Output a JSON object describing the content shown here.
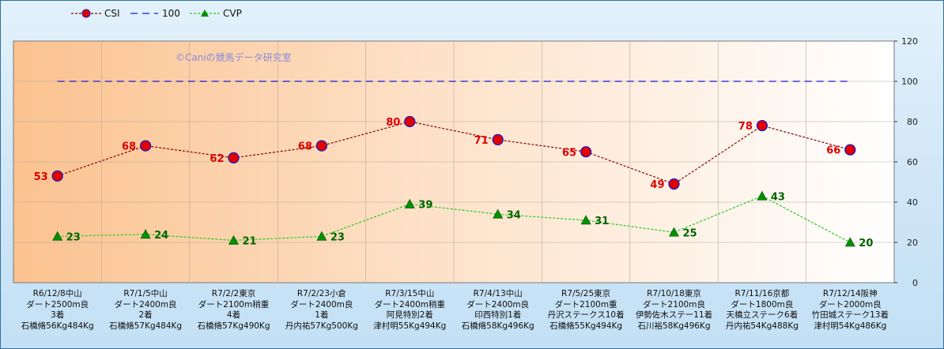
{
  "chart_data": {
    "type": "line",
    "watermark": "©Caniの競馬データ研究室",
    "legend": [
      "CSI",
      "100",
      "CVP"
    ],
    "legend_position": "top-left",
    "ylim": [
      0,
      120
    ],
    "yticks": [
      "0",
      "20",
      "40",
      "60",
      "80",
      "100",
      "120"
    ],
    "y_axis_side": "right",
    "grid": true,
    "categories": [
      [
        "R6/12/8中山",
        "ダート2500m良",
        "3着",
        "石橋脩56Kg484Kg"
      ],
      [
        "R7/1/5中山",
        "ダート2400m良",
        "2着",
        "石橋脩57Kg484Kg"
      ],
      [
        "R7/2/2東京",
        "ダート2100m稍重",
        "4着",
        "石橋脩57Kg490Kg"
      ],
      [
        "R7/2/23小倉",
        "ダート2400m良",
        "1着",
        "丹内祐57Kg500Kg"
      ],
      [
        "R7/3/15中山",
        "ダート2400m稍重",
        "阿見特別2着",
        "津村明55Kg494Kg"
      ],
      [
        "R7/4/13中山",
        "ダート2400m良",
        "印西特別1着",
        "石橋脩58Kg496Kg"
      ],
      [
        "R7/5/25東京",
        "ダート2100m重",
        "丹沢ステークス10着",
        "石橋脩55Kg494Kg"
      ],
      [
        "R7/10/18東京",
        "ダート2100m良",
        "伊勢佐木ステー11着",
        "石川裕58Kg496Kg"
      ],
      [
        "R7/11/16京都",
        "ダート1800m良",
        "天橋立ステーク6着",
        "丹内祐54Kg488Kg"
      ],
      [
        "R7/12/14阪神",
        "ダート2000m良",
        "竹田城ステーク13着",
        "津村明54Kg486Kg"
      ]
    ],
    "series": [
      {
        "name": "CSI",
        "values": [
          53,
          68,
          62,
          68,
          80,
          71,
          65,
          49,
          78,
          66
        ],
        "color": "#8b0000",
        "marker_color": "#e00000",
        "marker_edge": "#2020c0",
        "label_color": "#e00000"
      },
      {
        "name": "100",
        "values": [
          100,
          100,
          100,
          100,
          100,
          100,
          100,
          100,
          100,
          100
        ],
        "color": "#1a1acc"
      },
      {
        "name": "CVP",
        "values": [
          23,
          24,
          21,
          23,
          39,
          34,
          31,
          25,
          43,
          20
        ],
        "color": "#22cc22",
        "marker_color": "#009000",
        "label_color": "#006400"
      }
    ]
  }
}
